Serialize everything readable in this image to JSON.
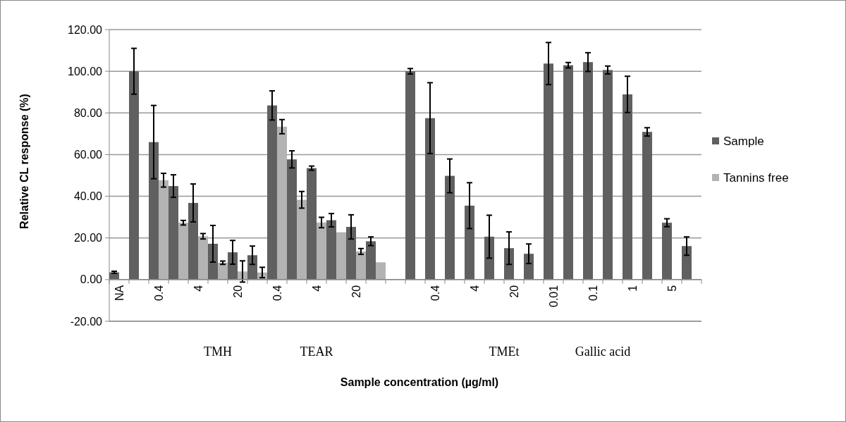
{
  "chart_data": {
    "type": "bar",
    "xlabel": "Sample concentration (µg/ml)",
    "ylabel": "Relative CL response (%)",
    "categories": [
      "NA",
      null,
      "0.4",
      null,
      "4",
      null,
      "20",
      null,
      "0.4",
      null,
      "4",
      null,
      "20",
      null,
      null,
      null,
      "0.4",
      null,
      "4",
      null,
      "20",
      null,
      "0.01",
      null,
      "0.1",
      null,
      "1",
      null,
      "5",
      null
    ],
    "series": [
      {
        "name": "Sample",
        "color": "#606060",
        "values": [
          3.5,
          100,
          66,
          44.9,
          36.8,
          17.2,
          13.1,
          11.7,
          83.6,
          57.7,
          53.5,
          28.5,
          25.3,
          18.4,
          null,
          100,
          77.5,
          49.8,
          35.5,
          20.6,
          15.1,
          12.4,
          103.7,
          102.9,
          104.4,
          100.6,
          88.9,
          70.9,
          27.3,
          16.1
        ],
        "errors": [
          0.5,
          11,
          17.6,
          5.4,
          9.1,
          8.8,
          5.7,
          4.4,
          7,
          4.1,
          1,
          3.2,
          5.8,
          2.1,
          null,
          1.3,
          17,
          8.1,
          11,
          10.3,
          7.8,
          4.7,
          10.1,
          1.3,
          4.5,
          1.9,
          8.7,
          2,
          1.9,
          4.4
        ]
      },
      {
        "name": "Tannins free",
        "color": "#b3b3b3",
        "values": [
          null,
          null,
          47.7,
          27.3,
          20.8,
          8.1,
          3.9,
          3.4,
          73.4,
          38.3,
          27.4,
          22.7,
          13.5,
          8.3,
          null,
          null,
          null,
          null,
          null,
          null,
          null,
          null,
          null,
          null,
          null,
          null,
          null,
          null,
          null,
          null
        ],
        "errors": [
          null,
          null,
          3.3,
          1.1,
          1.3,
          0.8,
          5.1,
          2.5,
          3.4,
          4,
          2.5,
          null,
          1.4,
          null,
          null,
          null,
          null,
          null,
          null,
          null,
          null,
          null,
          null,
          null,
          null,
          null,
          null,
          null,
          null,
          null
        ]
      }
    ],
    "ylim": [
      -20,
      120
    ],
    "yticks": [
      {
        "value": -20,
        "label": "-20.00"
      },
      {
        "value": 0,
        "label": "0.00"
      },
      {
        "value": 20,
        "label": "20.00"
      },
      {
        "value": 40,
        "label": "40.00"
      },
      {
        "value": 60,
        "label": "60.00"
      },
      {
        "value": 80,
        "label": "80.00"
      },
      {
        "value": 100,
        "label": "100.00"
      },
      {
        "value": 120,
        "label": "120.00"
      }
    ],
    "grid": "y",
    "legend": "right",
    "annotations": [
      "TMH",
      "TEAR",
      "TMEt",
      "Gallic acid"
    ]
  }
}
